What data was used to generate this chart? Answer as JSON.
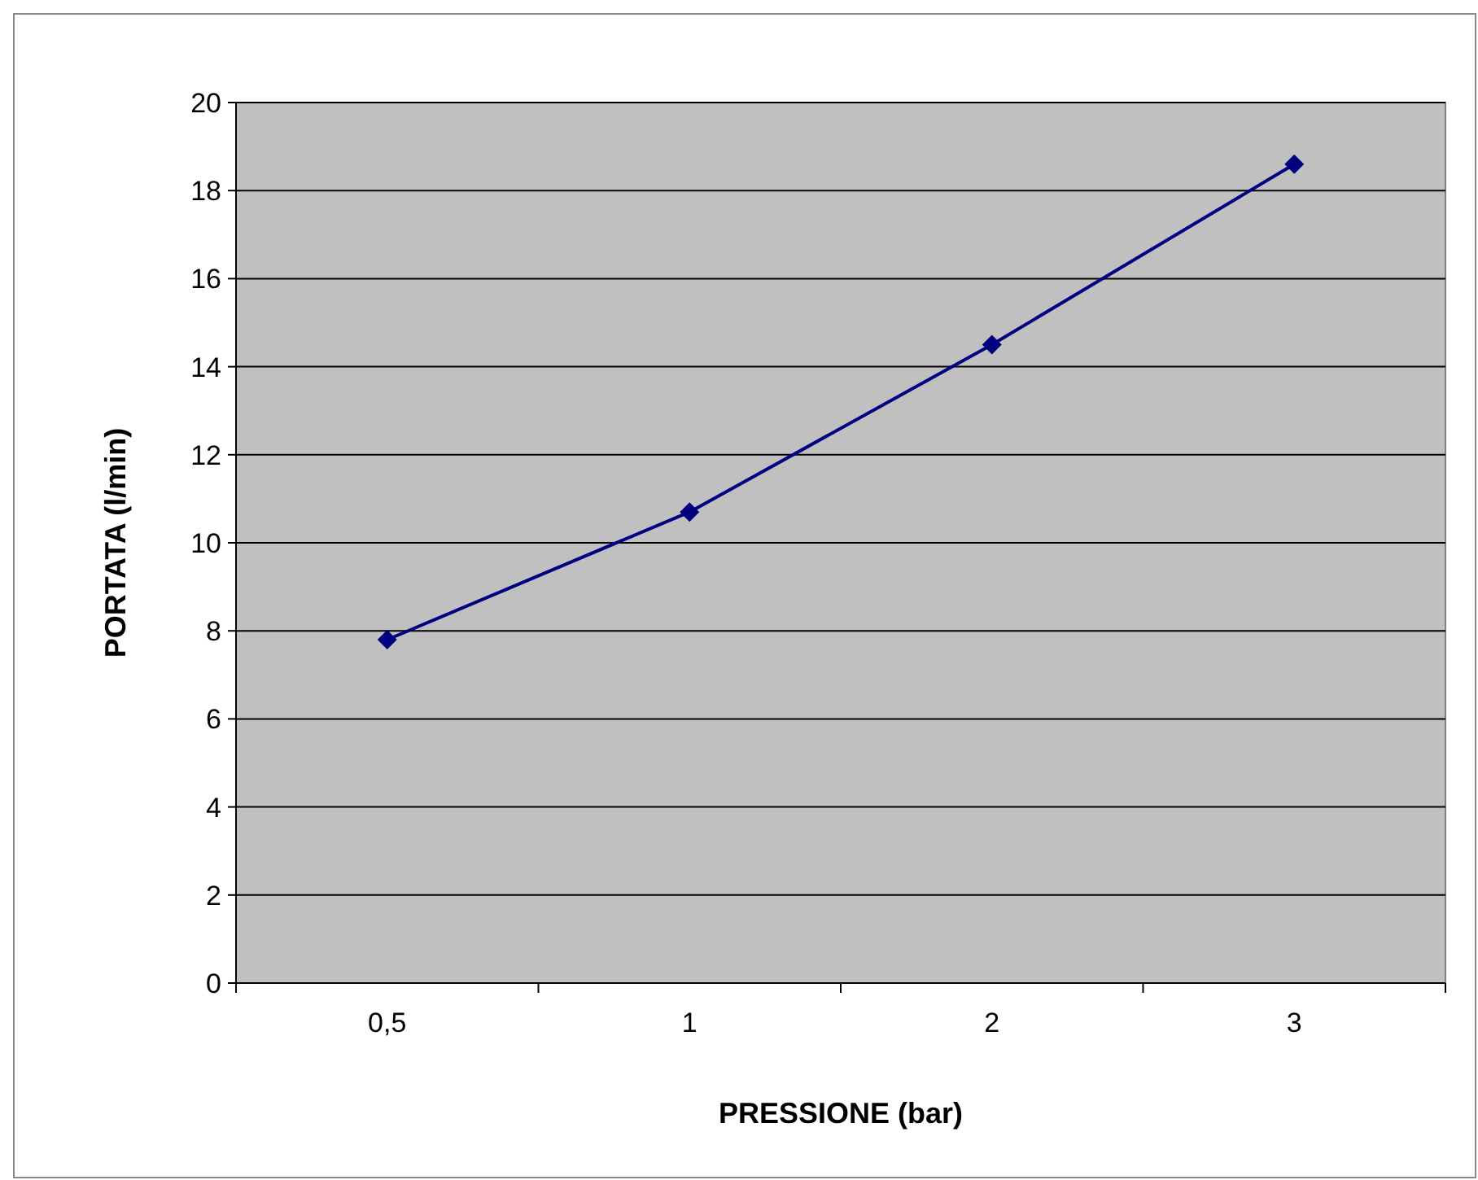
{
  "chart_data": {
    "type": "line",
    "xlabel": "PRESSIONE (bar)",
    "ylabel": "PORTATA (l/min)",
    "categories": [
      "0,5",
      "1",
      "2",
      "3"
    ],
    "series": [
      {
        "color": "#000080",
        "values": [
          7.8,
          10.7,
          14.5,
          18.6
        ]
      }
    ],
    "ylim": [
      0,
      20
    ],
    "yticks": [
      0,
      2,
      4,
      6,
      8,
      10,
      12,
      14,
      16,
      18,
      20
    ],
    "grid": "y",
    "marker": "diamond",
    "line_style": "solid"
  }
}
